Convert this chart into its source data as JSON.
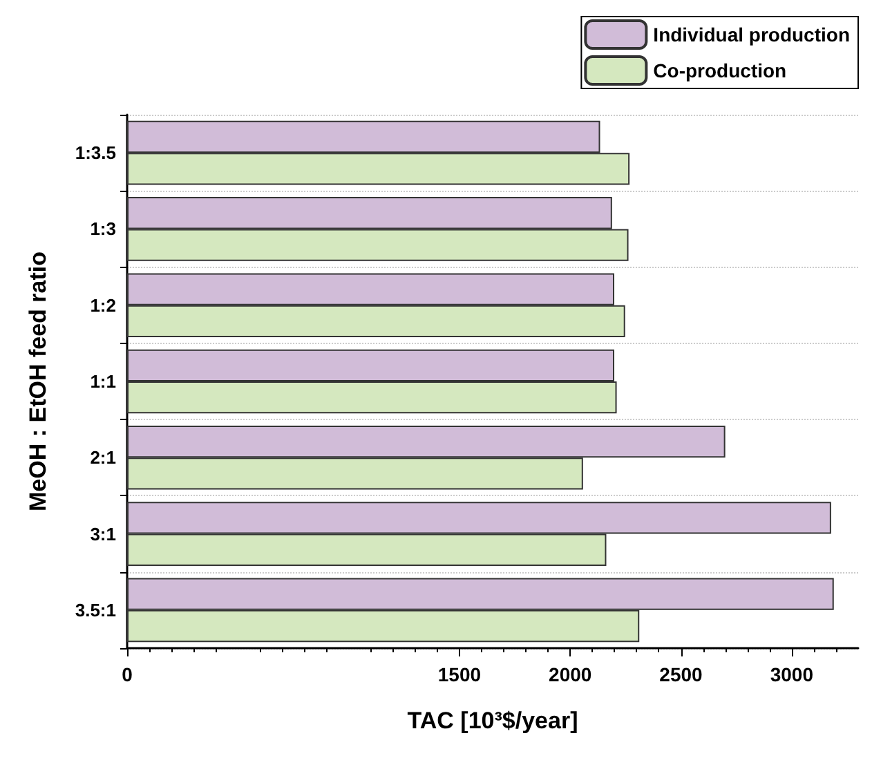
{
  "chart_data": {
    "type": "bar",
    "orientation": "horizontal",
    "xlabel": "TAC [10³$/year]",
    "ylabel": "MeOH : EtOH feed ratio",
    "categories": [
      "1:3.5",
      "1:3",
      "1:2",
      "1:1",
      "2:1",
      "3:1",
      "3.5:1"
    ],
    "series": [
      {
        "name": "Individual production",
        "color": "#d1bcd8",
        "values": [
          2135,
          2189,
          2199,
          2199,
          2700,
          3178,
          3190
        ]
      },
      {
        "name": "Co-production",
        "color": "#d5e8bf",
        "values": [
          2268,
          2263,
          2248,
          2210,
          2058,
          2163,
          2312
        ]
      }
    ],
    "xlim": [
      0,
      3300
    ],
    "xticks": [
      0,
      1500,
      2000,
      2500,
      3000
    ],
    "grid": "y",
    "legend": "top right"
  }
}
